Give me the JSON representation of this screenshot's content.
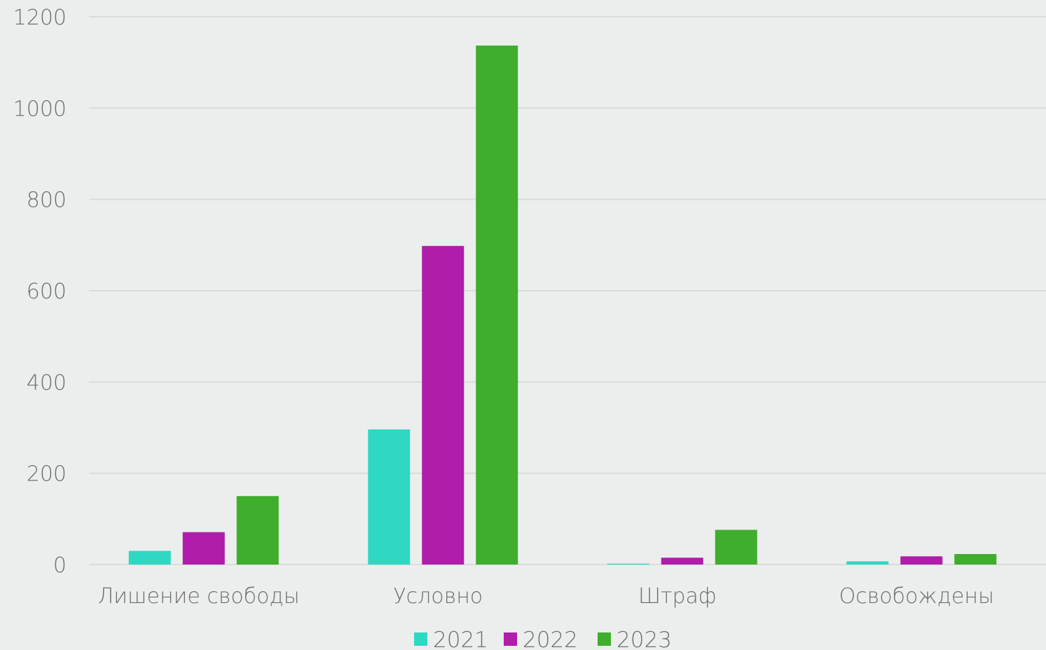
{
  "chart_data": {
    "type": "bar",
    "categories": [
      "Лишение свободы",
      "Условно",
      "Штраф",
      "Освобождены"
    ],
    "series": [
      {
        "name": "2021",
        "color": "#2ed8c3",
        "values": [
          30,
          296,
          2,
          7
        ]
      },
      {
        "name": "2022",
        "color": "#b01daa",
        "values": [
          71,
          698,
          15,
          18
        ]
      },
      {
        "name": "2023",
        "color": "#3eae2c",
        "values": [
          150,
          1137,
          76,
          23
        ]
      }
    ],
    "ylim": [
      0,
      1200
    ],
    "yticks": [
      "0",
      "200",
      "400",
      "600",
      "800",
      "1000",
      "1200"
    ],
    "ytick_values": [
      0,
      200,
      400,
      600,
      800,
      1000,
      1200
    ],
    "grid": true,
    "legend_position": "bottom",
    "title": "",
    "xlabel": "",
    "ylabel": ""
  }
}
